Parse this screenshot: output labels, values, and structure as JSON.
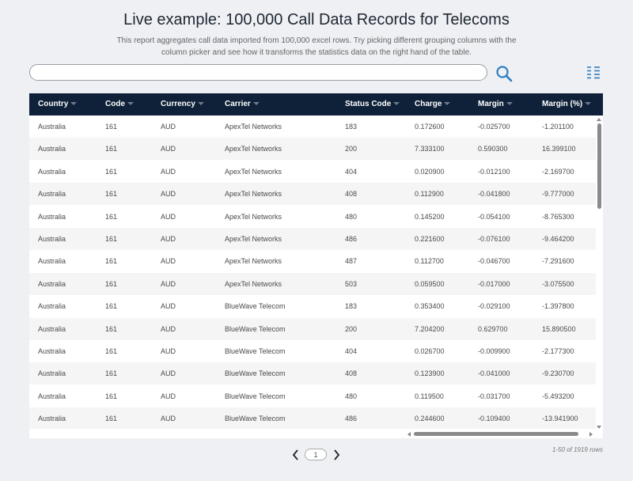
{
  "header": {
    "title": "Live example: 100,000 Call Data Records for Telecoms",
    "description": "This report aggregates call data imported from 100,000 excel rows. Try picking different grouping columns with the column picker and see how it transforms the statistics data on the right hand of the table."
  },
  "search": {
    "value": "",
    "placeholder": ""
  },
  "table": {
    "columns": [
      "Country",
      "Code",
      "Currency",
      "Carrier",
      "Status Code",
      "Charge",
      "Margin",
      "Margin (%)"
    ],
    "rows": [
      [
        "Australia",
        "161",
        "AUD",
        "ApexTel Networks",
        "183",
        "0.172600",
        "-0.025700",
        "-1.201100"
      ],
      [
        "Australia",
        "161",
        "AUD",
        "ApexTel Networks",
        "200",
        "7.333100",
        "0.590300",
        "16.399100"
      ],
      [
        "Australia",
        "161",
        "AUD",
        "ApexTel Networks",
        "404",
        "0.020900",
        "-0.012100",
        "-2.169700"
      ],
      [
        "Australia",
        "161",
        "AUD",
        "ApexTel Networks",
        "408",
        "0.112900",
        "-0.041800",
        "-9.777000"
      ],
      [
        "Australia",
        "161",
        "AUD",
        "ApexTel Networks",
        "480",
        "0.145200",
        "-0.054100",
        "-8.765300"
      ],
      [
        "Australia",
        "161",
        "AUD",
        "ApexTel Networks",
        "486",
        "0.221600",
        "-0.076100",
        "-9.464200"
      ],
      [
        "Australia",
        "161",
        "AUD",
        "ApexTel Networks",
        "487",
        "0.112700",
        "-0.046700",
        "-7.291600"
      ],
      [
        "Australia",
        "161",
        "AUD",
        "ApexTel Networks",
        "503",
        "0.059500",
        "-0.017000",
        "-3.075500"
      ],
      [
        "Australia",
        "161",
        "AUD",
        "BlueWave Telecom",
        "183",
        "0.353400",
        "-0.029100",
        "-1.397800"
      ],
      [
        "Australia",
        "161",
        "AUD",
        "BlueWave Telecom",
        "200",
        "7.204200",
        "0.629700",
        "15.890500"
      ],
      [
        "Australia",
        "161",
        "AUD",
        "BlueWave Telecom",
        "404",
        "0.026700",
        "-0.009900",
        "-2.177300"
      ],
      [
        "Australia",
        "161",
        "AUD",
        "BlueWave Telecom",
        "408",
        "0.123900",
        "-0.041000",
        "-9.230700"
      ],
      [
        "Australia",
        "161",
        "AUD",
        "BlueWave Telecom",
        "480",
        "0.119500",
        "-0.031700",
        "-5.493200"
      ],
      [
        "Australia",
        "161",
        "AUD",
        "BlueWave Telecom",
        "486",
        "0.244600",
        "-0.109400",
        "-13.941900"
      ]
    ]
  },
  "pagination": {
    "page": "1",
    "row_count": "1-50 of 1919 rows"
  },
  "icons": {
    "search": "search-icon",
    "column_picker": "column-picker-icon",
    "prev": "chevron-left-icon",
    "next": "chevron-right-icon"
  },
  "colors": {
    "header_bg": "#0e2139",
    "accent": "#2e7fc1",
    "background": "#eef0f3"
  }
}
